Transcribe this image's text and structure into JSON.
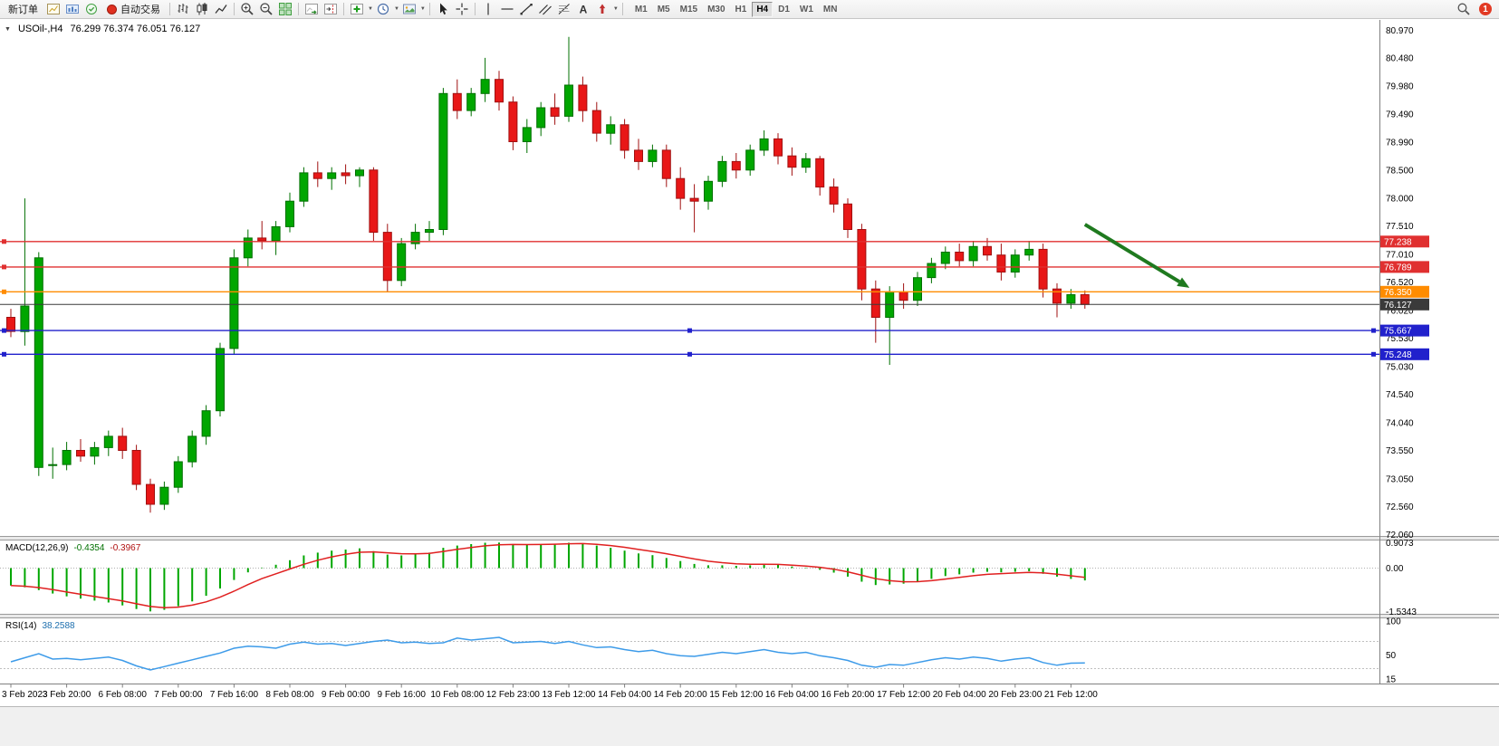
{
  "toolbar": {
    "new_order_label": "新订单",
    "autotrading_label": "自动交易",
    "timeframes": [
      "M1",
      "M5",
      "M15",
      "M30",
      "H1",
      "H4",
      "D1",
      "W1",
      "MN"
    ],
    "active_timeframe": "H4",
    "notification_count": "1"
  },
  "chart": {
    "title": "USOil-,H4",
    "ohlc_text": "76.299 76.374 76.051 76.127",
    "price_axis_labels": [
      "80.970",
      "80.480",
      "79.980",
      "79.490",
      "78.990",
      "78.500",
      "78.000",
      "77.510",
      "77.010",
      "76.520",
      "76.020",
      "75.530",
      "75.030",
      "74.540",
      "74.040",
      "73.550",
      "73.050",
      "72.560",
      "72.060"
    ]
  },
  "macd_panel": {
    "name": "MACD(12,26,9)",
    "main_value": "-0.4354",
    "signal_value": "-0.3967",
    "axis_labels": [
      "0.9073",
      "0.00",
      "-1.5343"
    ]
  },
  "rsi_panel": {
    "name": "RSI(14)",
    "value": "38.2588",
    "axis_labels": [
      "100",
      "50",
      "15"
    ]
  },
  "chart_data": {
    "type": "candlestick",
    "symbol": "USOil-",
    "timeframe": "H4",
    "title": "USOil-,H4 76.299 76.374 76.051 76.127",
    "up_color": "#00A600",
    "up_border": "#007000",
    "down_color": "#E81717",
    "down_border": "#A01010",
    "ylim": [
      72.04,
      81.15
    ],
    "candles": [
      [
        75.9,
        76.05,
        75.55,
        75.65
      ],
      [
        75.65,
        78.0,
        75.4,
        76.1
      ],
      [
        73.25,
        77.05,
        73.1,
        76.95
      ],
      [
        73.3,
        73.6,
        73.05,
        73.3
      ],
      [
        73.3,
        73.7,
        73.2,
        73.55
      ],
      [
        73.55,
        73.75,
        73.35,
        73.45
      ],
      [
        73.45,
        73.7,
        73.3,
        73.6
      ],
      [
        73.6,
        73.9,
        73.45,
        73.8
      ],
      [
        73.8,
        73.95,
        73.4,
        73.55
      ],
      [
        73.55,
        73.65,
        72.85,
        72.95
      ],
      [
        72.95,
        73.05,
        72.45,
        72.6
      ],
      [
        72.6,
        73.0,
        72.5,
        72.9
      ],
      [
        72.9,
        73.45,
        72.8,
        73.35
      ],
      [
        73.35,
        73.9,
        73.25,
        73.8
      ],
      [
        73.8,
        74.35,
        73.65,
        74.25
      ],
      [
        74.25,
        75.45,
        74.15,
        75.35
      ],
      [
        75.35,
        77.1,
        75.25,
        76.95
      ],
      [
        76.95,
        77.45,
        76.8,
        77.3
      ],
      [
        77.3,
        77.6,
        77.1,
        77.25
      ],
      [
        77.25,
        77.6,
        77.0,
        77.5
      ],
      [
        77.5,
        78.1,
        77.4,
        77.95
      ],
      [
        77.95,
        78.55,
        77.85,
        78.45
      ],
      [
        78.45,
        78.65,
        78.2,
        78.35
      ],
      [
        78.35,
        78.55,
        78.15,
        78.45
      ],
      [
        78.45,
        78.6,
        78.25,
        78.4
      ],
      [
        78.4,
        78.55,
        78.2,
        78.5
      ],
      [
        78.5,
        78.55,
        77.25,
        77.4
      ],
      [
        77.4,
        77.55,
        76.35,
        76.55
      ],
      [
        76.55,
        77.3,
        76.45,
        77.2
      ],
      [
        77.2,
        77.55,
        77.1,
        77.4
      ],
      [
        77.4,
        77.6,
        77.25,
        77.45
      ],
      [
        77.45,
        79.95,
        77.35,
        79.85
      ],
      [
        79.85,
        80.1,
        79.4,
        79.55
      ],
      [
        79.55,
        79.95,
        79.45,
        79.85
      ],
      [
        79.85,
        80.48,
        79.7,
        80.1
      ],
      [
        80.1,
        80.25,
        79.55,
        79.7
      ],
      [
        79.7,
        79.8,
        78.85,
        79.0
      ],
      [
        79.0,
        79.4,
        78.8,
        79.25
      ],
      [
        79.25,
        79.7,
        79.1,
        79.6
      ],
      [
        79.6,
        79.85,
        79.3,
        79.45
      ],
      [
        79.45,
        80.85,
        79.35,
        80.0
      ],
      [
        80.0,
        80.15,
        79.35,
        79.55
      ],
      [
        79.55,
        79.7,
        79.0,
        79.15
      ],
      [
        79.15,
        79.45,
        78.95,
        79.3
      ],
      [
        79.3,
        79.4,
        78.7,
        78.85
      ],
      [
        78.85,
        79.05,
        78.5,
        78.65
      ],
      [
        78.65,
        78.95,
        78.55,
        78.85
      ],
      [
        78.85,
        78.95,
        78.2,
        78.35
      ],
      [
        78.35,
        78.55,
        77.8,
        78.0
      ],
      [
        78.0,
        78.25,
        77.4,
        77.95
      ],
      [
        77.95,
        78.4,
        77.8,
        78.3
      ],
      [
        78.3,
        78.75,
        78.2,
        78.65
      ],
      [
        78.65,
        78.8,
        78.35,
        78.5
      ],
      [
        78.5,
        78.95,
        78.4,
        78.85
      ],
      [
        78.85,
        79.2,
        78.75,
        79.05
      ],
      [
        79.05,
        79.15,
        78.6,
        78.75
      ],
      [
        78.75,
        78.9,
        78.4,
        78.55
      ],
      [
        78.55,
        78.8,
        78.45,
        78.7
      ],
      [
        78.7,
        78.75,
        78.05,
        78.2
      ],
      [
        78.2,
        78.35,
        77.75,
        77.9
      ],
      [
        77.9,
        78.0,
        77.3,
        77.45
      ],
      [
        77.45,
        77.55,
        76.2,
        76.4
      ],
      [
        76.4,
        76.55,
        75.45,
        75.9
      ],
      [
        75.9,
        76.45,
        75.06,
        76.35
      ],
      [
        76.35,
        76.5,
        76.05,
        76.2
      ],
      [
        76.2,
        76.7,
        76.1,
        76.6
      ],
      [
        76.6,
        76.95,
        76.5,
        76.85
      ],
      [
        76.85,
        77.15,
        76.75,
        77.05
      ],
      [
        77.05,
        77.2,
        76.8,
        76.9
      ],
      [
        76.9,
        77.25,
        76.8,
        77.15
      ],
      [
        77.15,
        77.3,
        76.9,
        77.0
      ],
      [
        77.0,
        77.2,
        76.55,
        76.7
      ],
      [
        76.7,
        77.1,
        76.6,
        77.0
      ],
      [
        77.0,
        77.25,
        76.9,
        77.1
      ],
      [
        77.1,
        77.2,
        76.25,
        76.4
      ],
      [
        76.4,
        76.5,
        75.9,
        76.15
      ],
      [
        76.15,
        76.4,
        76.05,
        76.3
      ],
      [
        76.299,
        76.374,
        76.051,
        76.127
      ]
    ],
    "time_labels": [
      {
        "i": 0,
        "t": "3 Feb 2023"
      },
      {
        "i": 4,
        "t": "3 Feb 20:00"
      },
      {
        "i": 8,
        "t": "6 Feb 08:00"
      },
      {
        "i": 12,
        "t": "7 Feb 00:00"
      },
      {
        "i": 16,
        "t": "7 Feb 16:00"
      },
      {
        "i": 20,
        "t": "8 Feb 08:00"
      },
      {
        "i": 24,
        "t": "9 Feb 00:00"
      },
      {
        "i": 28,
        "t": "9 Feb 16:00"
      },
      {
        "i": 32,
        "t": "10 Feb 08:00"
      },
      {
        "i": 36,
        "t": "12 Feb 23:00"
      },
      {
        "i": 40,
        "t": "13 Feb 12:00"
      },
      {
        "i": 44,
        "t": "14 Feb 04:00"
      },
      {
        "i": 48,
        "t": "14 Feb 20:00"
      },
      {
        "i": 52,
        "t": "15 Feb 12:00"
      },
      {
        "i": 56,
        "t": "16 Feb 04:00"
      },
      {
        "i": 60,
        "t": "16 Feb 20:00"
      },
      {
        "i": 64,
        "t": "17 Feb 12:00"
      },
      {
        "i": 68,
        "t": "20 Feb 04:00"
      },
      {
        "i": 72,
        "t": "20 Feb 23:00"
      },
      {
        "i": 76,
        "t": "21 Feb 12:00"
      }
    ],
    "price_lines": [
      {
        "price": 77.238,
        "label": "77.238",
        "color": "#E03030"
      },
      {
        "price": 76.789,
        "label": "76.789",
        "color": "#E03030"
      },
      {
        "price": 76.35,
        "label": "76.350",
        "color": "#FF8C00"
      },
      {
        "price": 76.127,
        "label": "76.127",
        "color": "#3A3A3A",
        "current": true
      },
      {
        "price": 75.667,
        "label": "75.667",
        "color": "#2121CC",
        "selected": true
      },
      {
        "price": 75.248,
        "label": "75.248",
        "color": "#2121CC",
        "selected": true
      }
    ],
    "trend_arrow": {
      "from": [
        77,
        77.54
      ],
      "to": [
        84.5,
        76.42
      ],
      "color": "#1F7A1F"
    },
    "macd": {
      "histogram": [
        -0.62,
        -0.68,
        -0.78,
        -0.9,
        -1.0,
        -1.08,
        -1.15,
        -1.22,
        -1.32,
        -1.45,
        -1.5343,
        -1.48,
        -1.35,
        -1.18,
        -0.98,
        -0.72,
        -0.42,
        -0.15,
        0.02,
        0.12,
        0.28,
        0.45,
        0.55,
        0.62,
        0.66,
        0.7,
        0.6,
        0.48,
        0.45,
        0.5,
        0.55,
        0.72,
        0.8,
        0.85,
        0.9,
        0.9073,
        0.85,
        0.83,
        0.85,
        0.86,
        0.9,
        0.88,
        0.8,
        0.72,
        0.62,
        0.52,
        0.46,
        0.36,
        0.25,
        0.15,
        0.1,
        0.1,
        0.08,
        0.1,
        0.14,
        0.12,
        0.06,
        0.02,
        -0.06,
        -0.16,
        -0.3,
        -0.48,
        -0.6,
        -0.58,
        -0.55,
        -0.48,
        -0.38,
        -0.28,
        -0.22,
        -0.16,
        -0.13,
        -0.15,
        -0.13,
        -0.11,
        -0.2,
        -0.3,
        -0.38,
        -0.4354
      ],
      "signal_alpha": 0.35,
      "ylim": [
        -1.62,
        0.98
      ],
      "histogram_color": "#00A600",
      "signal_color": "#E02020"
    },
    "rsi": {
      "values": [
        40,
        46,
        52,
        44,
        45,
        43,
        45,
        47,
        42,
        34,
        28,
        33,
        38,
        43,
        48,
        53,
        60,
        63,
        62,
        60,
        66,
        69,
        66,
        67,
        64,
        67,
        70,
        72,
        68,
        69,
        67,
        68,
        75,
        72,
        74,
        76,
        68,
        69,
        70,
        67,
        70,
        65,
        61,
        62,
        58,
        55,
        57,
        52,
        49,
        48,
        51,
        54,
        52,
        55,
        58,
        54,
        52,
        54,
        49,
        46,
        42,
        35,
        32,
        36,
        35,
        39,
        43,
        46,
        44,
        47,
        45,
        41,
        44,
        46,
        39,
        35,
        38,
        38.2588
      ],
      "ylim": [
        8,
        104
      ],
      "levels": [
        70,
        30
      ],
      "line_color": "#3D9BE9"
    }
  }
}
